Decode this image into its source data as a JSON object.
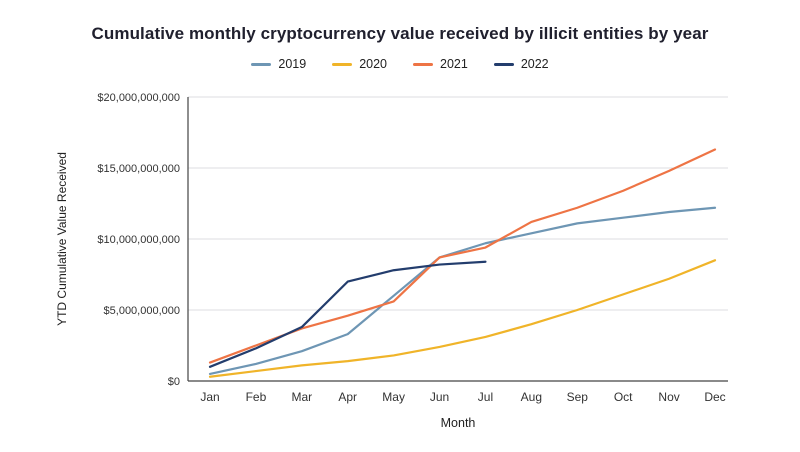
{
  "chart_data": {
    "type": "line",
    "title": "Cumulative monthly cryptocurrency value received by illicit entities by year",
    "xlabel": "Month",
    "ylabel": "YTD Cumulative Value Received",
    "x": [
      "Jan",
      "Feb",
      "Mar",
      "Apr",
      "May",
      "Jun",
      "Jul",
      "Aug",
      "Sep",
      "Oct",
      "Nov",
      "Dec"
    ],
    "ylim": [
      0,
      20000000000
    ],
    "ytick_interval": 5000000000,
    "ytick_labels": [
      "$0",
      "$5,000,000,000",
      "$10,000,000,000",
      "$15,000,000,000",
      "$20,000,000,000"
    ],
    "grid": true,
    "legend_position": "top",
    "series": [
      {
        "name": "2019",
        "color": "#6e96b4",
        "values": [
          500000000,
          1200000000,
          2100000000,
          3300000000,
          6000000000,
          8700000000,
          9700000000,
          10400000000,
          11100000000,
          11500000000,
          11900000000,
          12200000000
        ]
      },
      {
        "name": "2020",
        "color": "#f0b429",
        "values": [
          300000000,
          700000000,
          1100000000,
          1400000000,
          1800000000,
          2400000000,
          3100000000,
          4000000000,
          5000000000,
          6100000000,
          7200000000,
          8500000000
        ]
      },
      {
        "name": "2021",
        "color": "#ee7445",
        "values": [
          1300000000,
          2500000000,
          3700000000,
          4600000000,
          5600000000,
          8700000000,
          9400000000,
          11200000000,
          12200000000,
          13400000000,
          14800000000,
          16300000000
        ]
      },
      {
        "name": "2022",
        "color": "#233d6d",
        "values": [
          1000000000,
          2300000000,
          3800000000,
          7000000000,
          7800000000,
          8200000000,
          8400000000
        ]
      }
    ]
  }
}
